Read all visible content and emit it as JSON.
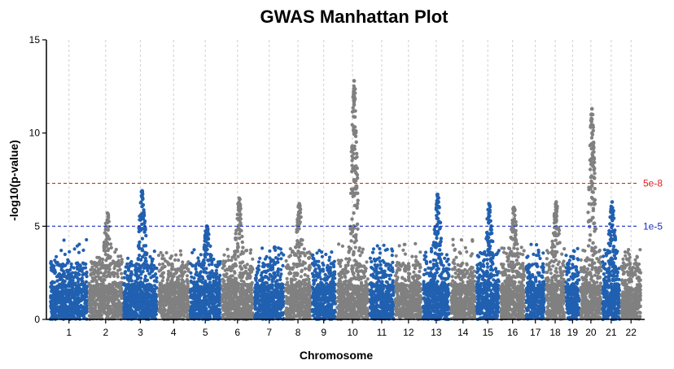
{
  "chart_data": {
    "type": "scatter",
    "title": "GWAS Manhattan Plot",
    "xlabel": "Chromosome",
    "ylabel": "-log10(p-value)",
    "ylim": [
      0,
      15
    ],
    "yticks": [
      "0",
      "5",
      "10",
      "15"
    ],
    "grid": "vertical dashed at chromosome centers",
    "colors": {
      "odd": "#2160b0",
      "even": "#808080",
      "genome_wide": "#e02020",
      "suggestive": "#1a2fc0"
    },
    "thresholds": [
      {
        "label": "5e-8",
        "value": 7.3,
        "color": "#e02020"
      },
      {
        "label": "1e-5",
        "value": 5.0,
        "color": "#1a2fc0"
      }
    ],
    "chromosomes": [
      {
        "label": "1",
        "background_max": 4.4,
        "peaks": []
      },
      {
        "label": "2",
        "background_max": 3.8,
        "peaks": [
          5.7
        ]
      },
      {
        "label": "3",
        "background_max": 3.9,
        "peaks": [
          6.9
        ]
      },
      {
        "label": "4",
        "background_max": 3.7,
        "peaks": []
      },
      {
        "label": "5",
        "background_max": 3.8,
        "peaks": [
          5.0
        ]
      },
      {
        "label": "6",
        "background_max": 3.9,
        "peaks": [
          6.5
        ]
      },
      {
        "label": "7",
        "background_max": 3.9,
        "peaks": []
      },
      {
        "label": "8",
        "background_max": 3.8,
        "peaks": [
          6.2
        ]
      },
      {
        "label": "9",
        "background_max": 3.7,
        "peaks": []
      },
      {
        "label": "10",
        "background_max": 4.3,
        "peaks": [
          12.8
        ]
      },
      {
        "label": "11",
        "background_max": 4.0,
        "peaks": []
      },
      {
        "label": "12",
        "background_max": 4.1,
        "peaks": []
      },
      {
        "label": "13",
        "background_max": 3.8,
        "peaks": [
          6.7
        ]
      },
      {
        "label": "14",
        "background_max": 4.3,
        "peaks": []
      },
      {
        "label": "15",
        "background_max": 3.8,
        "peaks": [
          6.2
        ]
      },
      {
        "label": "16",
        "background_max": 3.9,
        "peaks": [
          6.0
        ]
      },
      {
        "label": "17",
        "background_max": 4.3,
        "peaks": []
      },
      {
        "label": "18",
        "background_max": 3.8,
        "peaks": [
          6.3
        ]
      },
      {
        "label": "19",
        "background_max": 3.9,
        "peaks": []
      },
      {
        "label": "20",
        "background_max": 3.9,
        "peaks": [
          11.3
        ]
      },
      {
        "label": "21",
        "background_max": 3.8,
        "peaks": [
          6.3
        ]
      },
      {
        "label": "22",
        "background_max": 3.8,
        "peaks": []
      }
    ]
  }
}
